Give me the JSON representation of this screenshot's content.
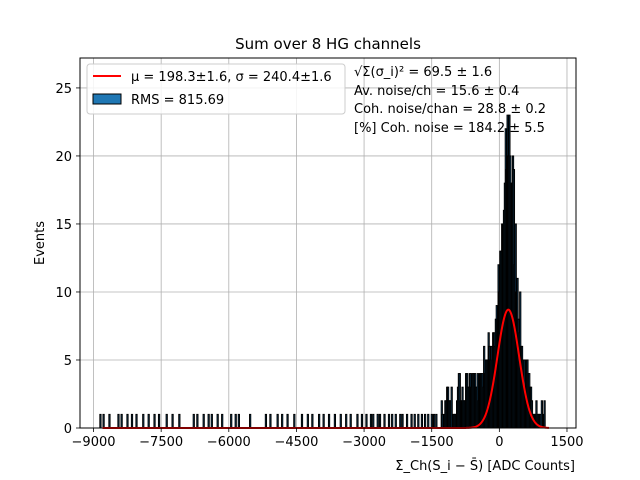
{
  "chart_data": {
    "type": "bar",
    "title": "Sum over 8 HG channels",
    "xlabel": "Σ_Ch(S_i − S̄) [ADC Counts]",
    "ylabel": "Events",
    "xlim": [
      -9300,
      1700
    ],
    "ylim": [
      0,
      27.2
    ],
    "xticks": [
      -9000,
      -7500,
      -6000,
      -4500,
      -3000,
      -1500,
      0,
      1500
    ],
    "xtick_labels": [
      "−9000",
      "−7500",
      "−6000",
      "−4500",
      "−3000",
      "−1500",
      "0",
      "1500"
    ],
    "yticks": [
      0,
      5,
      10,
      15,
      20,
      25
    ],
    "ytick_labels": [
      "0",
      "5",
      "10",
      "15",
      "20",
      "25"
    ],
    "grid": true,
    "legend_position": "top-left",
    "legend": [
      {
        "label": "μ = 198.3±1.6, σ = 240.4±1.6",
        "kind": "line",
        "color": "#ff0000"
      },
      {
        "label": "RMS = 815.69",
        "kind": "patch",
        "color": "#1f77b4"
      }
    ],
    "annotations": [
      "√Σ(σ_i)² = 69.5 ± 1.6",
      "Av. noise/ch = 15.6 ± 0.4",
      "Coh. noise/chan = 28.8 ± 0.2",
      "[%] Coh. noise = 184.2 ± 5.5"
    ],
    "fit": {
      "mu": 198.3,
      "sigma": 240.4,
      "amplitude": 8.7
    },
    "histogram": {
      "bin_width": 20,
      "peak_series": [
        {
          "x": -1300,
          "y": 1
        },
        {
          "x": -1100,
          "y": 2
        },
        {
          "x": -1000,
          "y": 1
        },
        {
          "x": -900,
          "y": 3
        },
        {
          "x": -800,
          "y": 2
        },
        {
          "x": -700,
          "y": 3
        },
        {
          "x": -600,
          "y": 4
        },
        {
          "x": -500,
          "y": 3
        },
        {
          "x": -400,
          "y": 4
        },
        {
          "x": -300,
          "y": 5
        },
        {
          "x": -200,
          "y": 6
        },
        {
          "x": -100,
          "y": 7
        },
        {
          "x": -50,
          "y": 9
        },
        {
          "x": 0,
          "y": 10
        },
        {
          "x": 50,
          "y": 13
        },
        {
          "x": 100,
          "y": 16
        },
        {
          "x": 150,
          "y": 19
        },
        {
          "x": 200,
          "y": 23
        },
        {
          "x": 250,
          "y": 21
        },
        {
          "x": 300,
          "y": 18
        },
        {
          "x": 350,
          "y": 14
        },
        {
          "x": 400,
          "y": 11
        },
        {
          "x": 450,
          "y": 9
        },
        {
          "x": 500,
          "y": 6
        },
        {
          "x": 550,
          "y": 5
        },
        {
          "x": 600,
          "y": 4
        },
        {
          "x": 650,
          "y": 3
        },
        {
          "x": 700,
          "y": 2
        },
        {
          "x": 800,
          "y": 2
        },
        {
          "x": 900,
          "y": 1
        },
        {
          "x": 1000,
          "y": 1
        }
      ],
      "tail_x": [
        -8850,
        -8780,
        -8650,
        -8450,
        -8380,
        -8250,
        -8150,
        -8050,
        -7900,
        -7780,
        -7650,
        -7550,
        -7380,
        -7250,
        -7100,
        -6780,
        -6700,
        -6560,
        -6450,
        -6380,
        -6250,
        -6150,
        -5950,
        -5850,
        -5780,
        -5530,
        -5180,
        -5080,
        -4920,
        -4820,
        -4700,
        -4550,
        -4380,
        -4250,
        -4150,
        -4000,
        -3900,
        -3780,
        -3650,
        -3520,
        -3400,
        -3300,
        -3150,
        -3050,
        -2950,
        -2850,
        -2800,
        -2700,
        -2650,
        -2550,
        -2450,
        -2380,
        -2300,
        -2200,
        -2150,
        -2050,
        -1950,
        -1880,
        -1800,
        -1720,
        -1650,
        -1580,
        -1500,
        -1450,
        -1400
      ]
    }
  }
}
